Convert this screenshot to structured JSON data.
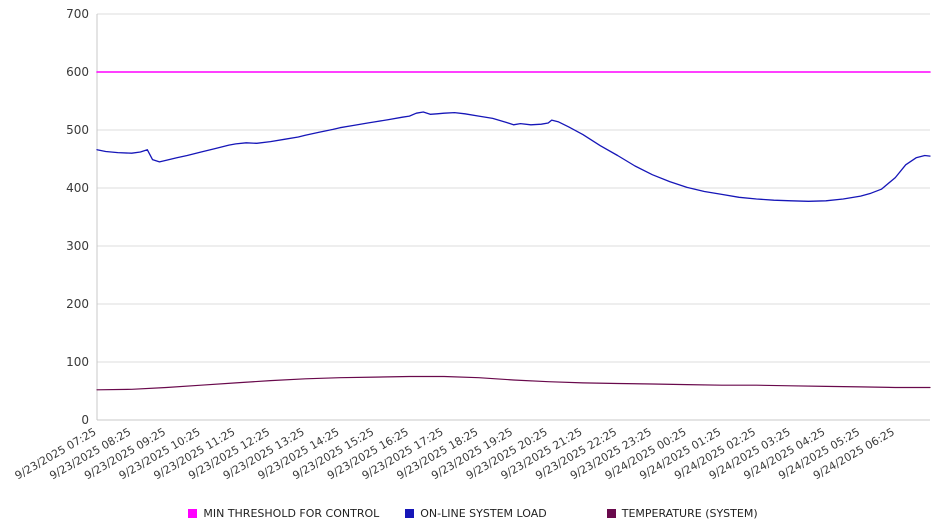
{
  "chart_data": {
    "type": "line",
    "title": "",
    "xlabel": "",
    "ylabel": "",
    "ylim": [
      0,
      700
    ],
    "y_ticks": [
      0,
      100,
      200,
      300,
      400,
      500,
      600,
      700
    ],
    "grid": true,
    "legend_position": "bottom",
    "x_range_hours": 24,
    "x_tick_labels": [
      "9/23/2025 07:25",
      "9/23/2025 08:25",
      "9/23/2025 09:25",
      "9/23/2025 10:25",
      "9/23/2025 11:25",
      "9/23/2025 12:25",
      "9/23/2025 13:25",
      "9/23/2025 14:25",
      "9/23/2025 15:25",
      "9/23/2025 16:25",
      "9/23/2025 17:25",
      "9/23/2025 18:25",
      "9/23/2025 19:25",
      "9/23/2025 20:25",
      "9/23/2025 21:25",
      "9/23/2025 22:25",
      "9/23/2025 23:25",
      "9/24/2025 00:25",
      "9/24/2025 01:25",
      "9/24/2025 02:25",
      "9/24/2025 03:25",
      "9/24/2025 04:25",
      "9/24/2025 05:25",
      "9/24/2025 06:25"
    ],
    "series": [
      {
        "name": "MIN THRESHOLD FOR CONTROL",
        "color": "#ff00ff",
        "stroke_width": 1.6,
        "points": [
          [
            0,
            600
          ],
          [
            24,
            600
          ]
        ]
      },
      {
        "name": "ON-LINE SYSTEM LOAD",
        "color": "#1616b8",
        "stroke_width": 1.3,
        "points": [
          [
            0,
            466
          ],
          [
            0.25,
            463
          ],
          [
            0.6,
            461
          ],
          [
            1,
            460
          ],
          [
            1.25,
            462
          ],
          [
            1.45,
            466
          ],
          [
            1.6,
            449
          ],
          [
            1.8,
            445
          ],
          [
            2,
            448
          ],
          [
            2.3,
            452
          ],
          [
            2.6,
            456
          ],
          [
            3,
            462
          ],
          [
            3.4,
            468
          ],
          [
            3.8,
            474
          ],
          [
            4,
            476
          ],
          [
            4.3,
            478
          ],
          [
            4.6,
            477
          ],
          [
            5,
            480
          ],
          [
            5.4,
            484
          ],
          [
            5.8,
            488
          ],
          [
            6,
            491
          ],
          [
            6.4,
            496
          ],
          [
            6.8,
            501
          ],
          [
            7,
            504
          ],
          [
            7.4,
            508
          ],
          [
            7.8,
            512
          ],
          [
            8,
            514
          ],
          [
            8.4,
            518
          ],
          [
            8.8,
            522
          ],
          [
            9,
            524
          ],
          [
            9.2,
            529
          ],
          [
            9.4,
            531
          ],
          [
            9.6,
            527
          ],
          [
            9.8,
            528
          ],
          [
            10,
            529
          ],
          [
            10.3,
            530
          ],
          [
            10.6,
            528
          ],
          [
            11,
            524
          ],
          [
            11.4,
            520
          ],
          [
            11.8,
            513
          ],
          [
            12,
            509
          ],
          [
            12.2,
            511
          ],
          [
            12.5,
            509
          ],
          [
            12.8,
            510
          ],
          [
            13,
            512
          ],
          [
            13.1,
            517
          ],
          [
            13.3,
            514
          ],
          [
            13.6,
            505
          ],
          [
            14,
            492
          ],
          [
            14.5,
            473
          ],
          [
            15,
            456
          ],
          [
            15.5,
            438
          ],
          [
            16,
            423
          ],
          [
            16.5,
            411
          ],
          [
            17,
            401
          ],
          [
            17.5,
            394
          ],
          [
            18,
            389
          ],
          [
            18.5,
            384
          ],
          [
            19,
            381
          ],
          [
            19.5,
            379
          ],
          [
            20,
            378
          ],
          [
            20.5,
            377
          ],
          [
            21,
            378
          ],
          [
            21.5,
            381
          ],
          [
            22,
            386
          ],
          [
            22.3,
            391
          ],
          [
            22.6,
            398
          ],
          [
            23,
            418
          ],
          [
            23.3,
            440
          ],
          [
            23.6,
            452
          ],
          [
            23.85,
            456
          ],
          [
            24,
            455
          ]
        ]
      },
      {
        "name": "TEMPERATURE (SYSTEM)",
        "color": "#69094c",
        "stroke_width": 1.2,
        "points": [
          [
            0,
            52
          ],
          [
            1,
            53
          ],
          [
            2,
            56
          ],
          [
            3,
            60
          ],
          [
            4,
            64
          ],
          [
            5,
            68
          ],
          [
            6,
            71
          ],
          [
            7,
            73
          ],
          [
            8,
            74
          ],
          [
            9,
            75
          ],
          [
            10,
            75
          ],
          [
            11,
            73
          ],
          [
            12,
            69
          ],
          [
            13,
            66
          ],
          [
            14,
            64
          ],
          [
            15,
            63
          ],
          [
            16,
            62
          ],
          [
            17,
            61
          ],
          [
            18,
            60
          ],
          [
            19,
            60
          ],
          [
            20,
            59
          ],
          [
            21,
            58
          ],
          [
            22,
            57
          ],
          [
            23,
            56
          ],
          [
            24,
            56
          ]
        ]
      }
    ],
    "axis_color": "#c8c8c8",
    "grid_color": "#dcdcdc",
    "tick_label_color": "#3a3a3a"
  }
}
